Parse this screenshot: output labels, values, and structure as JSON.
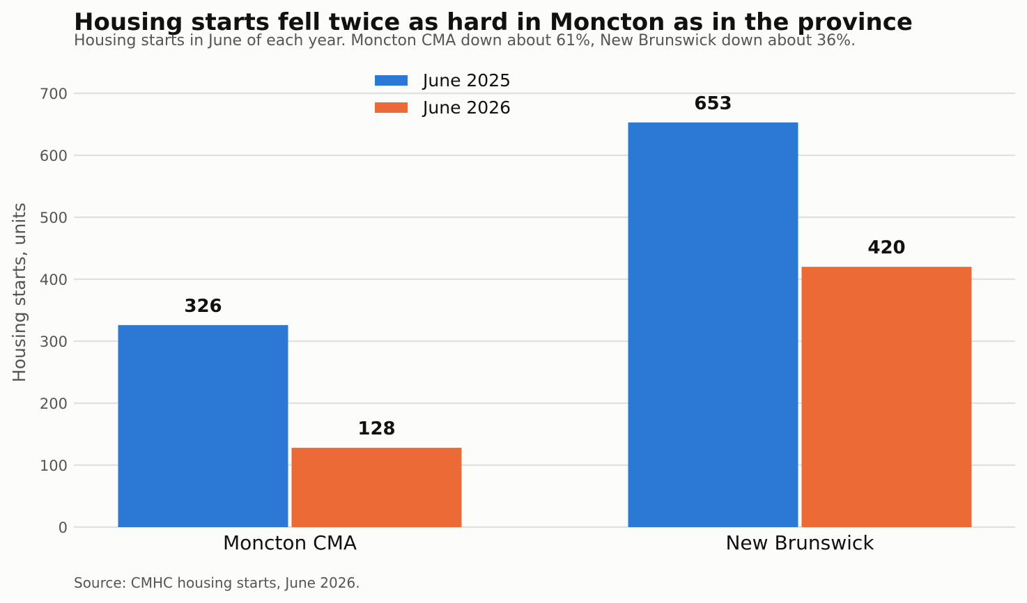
{
  "chart_data": {
    "type": "bar",
    "title": "Housing starts fell twice as hard in Moncton as in the province",
    "subtitle": "Housing starts in June of each year. Moncton CMA down about 61%, New Brunswick down about 36%.",
    "source": "Source: CMHC housing starts, June 2026.",
    "xlabel": "",
    "ylabel": "Housing starts, units",
    "ylim": [
      0,
      700
    ],
    "yticks": [
      0,
      100,
      200,
      300,
      400,
      500,
      600,
      700
    ],
    "grid": true,
    "legend_position": "top-center",
    "categories": [
      "Moncton CMA",
      "New Brunswick"
    ],
    "series": [
      {
        "name": "June 2025",
        "color": "#2b78d5",
        "values": [
          326,
          653
        ]
      },
      {
        "name": "June 2026",
        "color": "#eb6a36",
        "values": [
          128,
          420
        ]
      }
    ]
  }
}
